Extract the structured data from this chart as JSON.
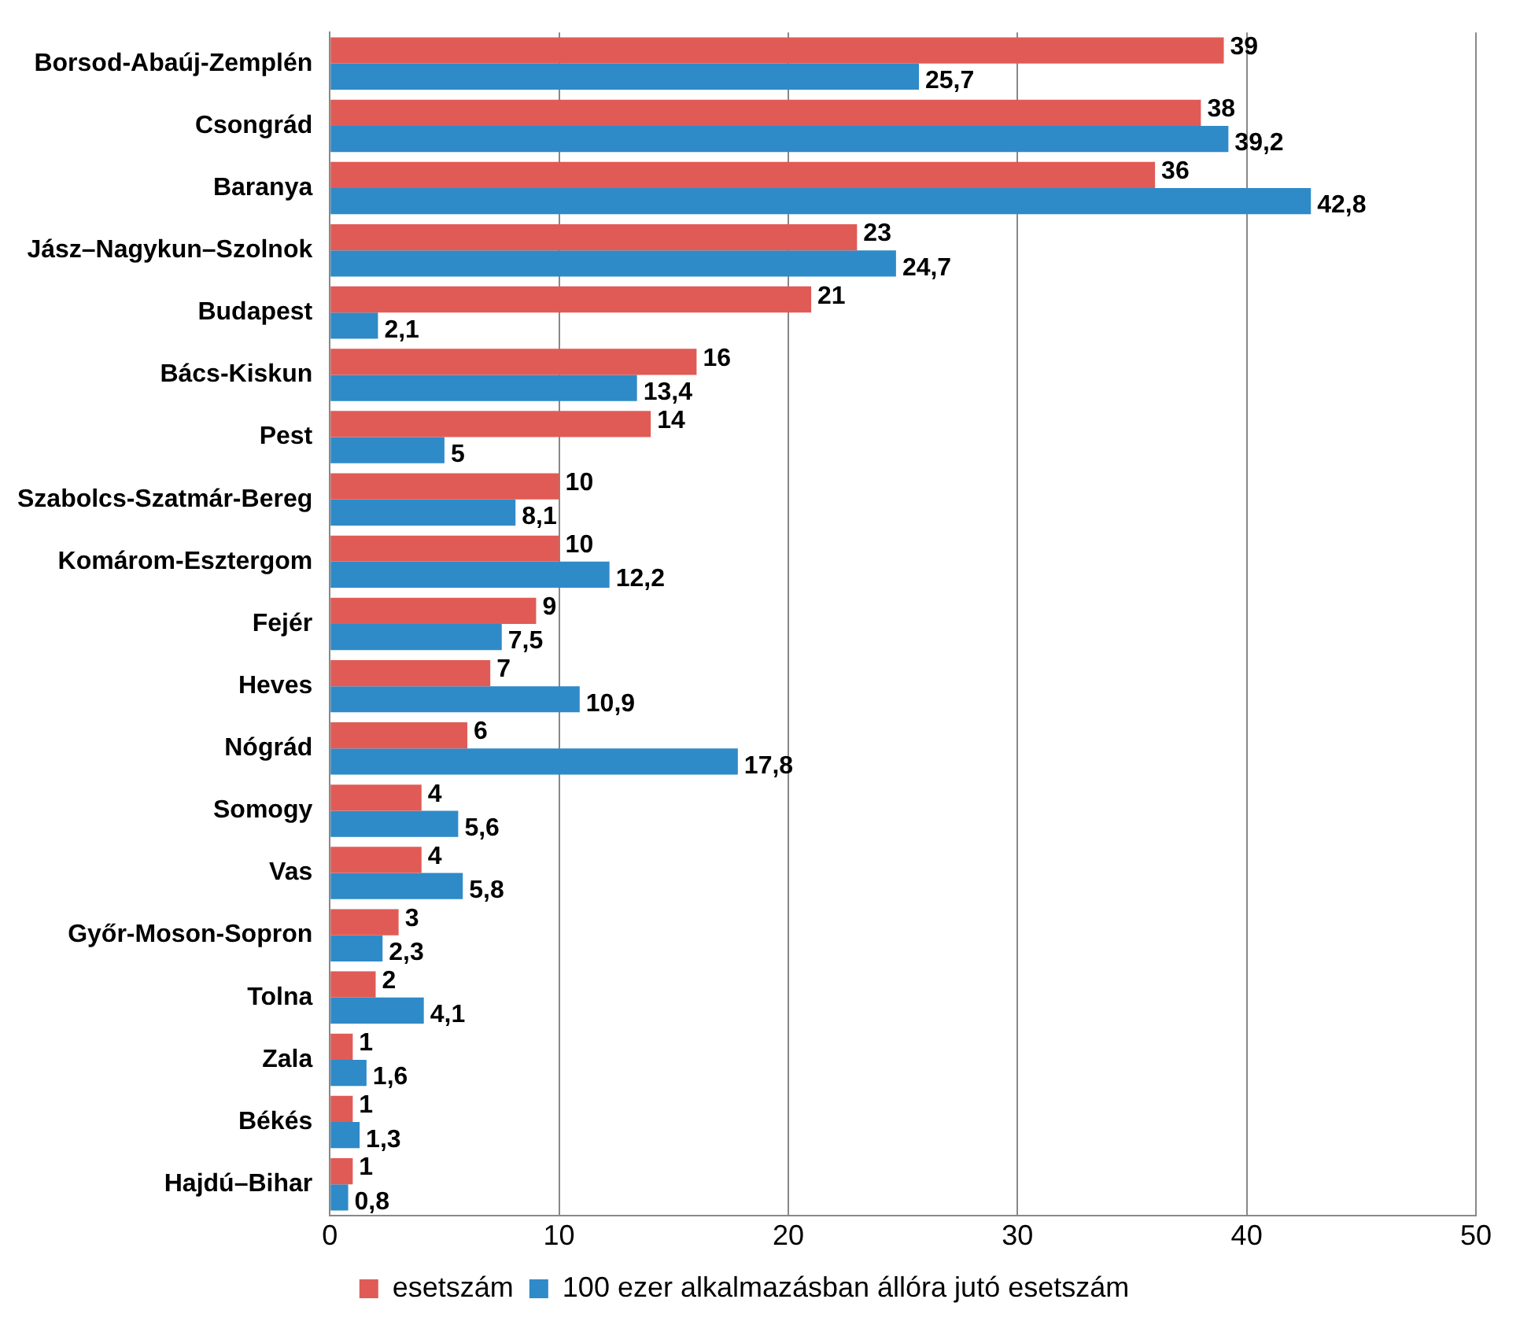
{
  "chart_data": {
    "type": "bar",
    "orientation": "horizontal",
    "categories": [
      "Borsod-Abaúj-Zemplén",
      "Csongrád",
      "Baranya",
      "Jász–Nagykun–Szolnok",
      "Budapest",
      "Bács-Kiskun",
      "Pest",
      "Szabolcs-Szatmár-Bereg",
      "Komárom-Esztergom",
      "Fejér",
      "Heves",
      "Nógrád",
      "Somogy",
      "Vas",
      "Győr-Moson-Sopron",
      "Tolna",
      "Zala",
      "Békés",
      "Hajdú–Bihar"
    ],
    "series": [
      {
        "name": "esetszám",
        "color": "#e05b56",
        "values": [
          39,
          38,
          36,
          23,
          21,
          16,
          14,
          10,
          10,
          9,
          7,
          6,
          4,
          4,
          3,
          2,
          1,
          1,
          1
        ],
        "value_labels": [
          "39",
          "38",
          "36",
          "23",
          "21",
          "16",
          "14",
          "10",
          "10",
          "9",
          "7",
          "6",
          "4",
          "4",
          "3",
          "2",
          "1",
          "1",
          "1"
        ]
      },
      {
        "name": "100 ezer alkalmazásban állóra jutó esetszám",
        "color": "#2f8ac8",
        "values": [
          25.7,
          39.2,
          42.8,
          24.7,
          2.1,
          13.4,
          5,
          8.1,
          12.2,
          7.5,
          10.9,
          17.8,
          5.6,
          5.8,
          2.3,
          4.1,
          1.6,
          1.3,
          0.8
        ],
        "value_labels": [
          "25,7",
          "39,2",
          "42,8",
          "24,7",
          "2,1",
          "13,4",
          "5",
          "8,1",
          "12,2",
          "7,5",
          "10,9",
          "17,8",
          "5,6",
          "5,8",
          "2,3",
          "4,1",
          "1,6",
          "1,3",
          "0,8"
        ]
      }
    ],
    "xlim": [
      0,
      50
    ],
    "xticks": [
      0,
      10,
      20,
      30,
      40,
      50
    ],
    "grid": "x",
    "legend": "bottom"
  }
}
